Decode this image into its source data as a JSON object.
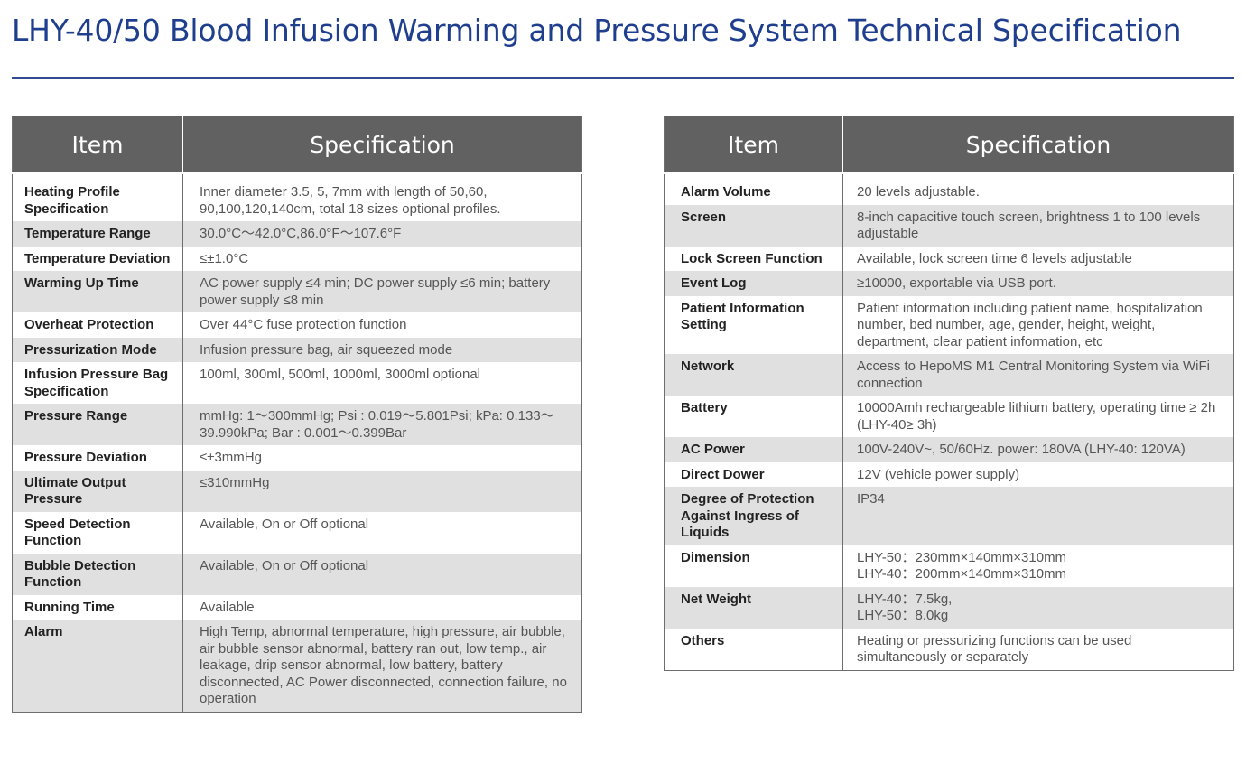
{
  "title": "LHY-40/50 Blood Infusion Warming and Pressure System Technical Specification",
  "header": {
    "item": "Item",
    "specification": "Specification"
  },
  "left_table": [
    {
      "item": "Heating Profile Specification",
      "spec": "Inner diameter 3.5, 5, 7mm with length of 50,60, 90,100,120,140cm, total 18 sizes optional profiles."
    },
    {
      "item": "Temperature Range",
      "spec": "30.0°C～42.0°C,86.0°F～107.6°F"
    },
    {
      "item": "Temperature Deviation",
      "spec": "≤±1.0°C"
    },
    {
      "item": "Warming Up Time",
      "spec": "AC power supply ≤4 min; DC power supply ≤6 min; battery power supply ≤8 min"
    },
    {
      "item": "Overheat Protection",
      "spec": "Over 44°C fuse protection function"
    },
    {
      "item": "Pressurization Mode",
      "spec": "Infusion pressure bag, air squeezed mode"
    },
    {
      "item": "Infusion Pressure Bag Specification",
      "spec": "100ml, 300ml, 500ml, 1000ml, 3000ml optional"
    },
    {
      "item": "Pressure Range",
      "spec": "mmHg: 1～300mmHg; Psi : 0.019～5.801Psi; kPa: 0.133～39.990kPa; Bar : 0.001～0.399Bar"
    },
    {
      "item": "Pressure Deviation",
      "spec": "≤±3mmHg"
    },
    {
      "item": "Ultimate Output Pressure",
      "spec": "≤310mmHg"
    },
    {
      "item": "Speed Detection Function",
      "spec": "Available, On or Off optional"
    },
    {
      "item": "Bubble Detection Function",
      "spec": "Available, On or Off optional"
    },
    {
      "item": "Running Time",
      "spec": "Available"
    },
    {
      "item": "Alarm",
      "spec": "High Temp, abnormal temperature, high pressure, air bubble, air bubble sensor abnormal, battery ran out, low temp., air leakage, drip sensor abnormal, low battery, battery disconnected, AC Power disconnected, connection failure, no operation"
    }
  ],
  "right_table": [
    {
      "item": "Alarm Volume",
      "spec": "20 levels adjustable."
    },
    {
      "item": "Screen",
      "spec": "8-inch capacitive touch screen, brightness 1 to 100 levels adjustable"
    },
    {
      "item": "Lock Screen Function",
      "spec": "Available, lock screen time 6 levels adjustable"
    },
    {
      "item": "Event Log",
      "spec": "≥10000, exportable via USB port."
    },
    {
      "item": "Patient Information Setting",
      "spec": "Patient information including patient name, hospitalization number, bed number, age, gender, height, weight, department, clear patient information, etc"
    },
    {
      "item": "Network",
      "spec": "Access to HepoMS M1 Central Monitoring System via WiFi connection"
    },
    {
      "item": "Battery",
      "spec": "10000Amh rechargeable lithium battery, operating time ≥ 2h (LHY-40≥ 3h)"
    },
    {
      "item": "AC Power",
      "spec": "100V-240V~, 50/60Hz. power: 180VA (LHY-40: 120VA)"
    },
    {
      "item": "Direct Dower",
      "spec": "12V (vehicle power supply)"
    },
    {
      "item": "Degree of Protection Against Ingress of Liquids",
      "spec": "IP34"
    },
    {
      "item": "Dimension",
      "spec": "LHY-50：230mm×140mm×310mm\nLHY-40：200mm×140mm×310mm"
    },
    {
      "item": "Net Weight",
      "spec": "LHY-40：7.5kg,\nLHY-50：8.0kg"
    },
    {
      "item": "Others",
      "spec": "Heating or pressurizing functions can be used simultaneously or separately"
    }
  ]
}
